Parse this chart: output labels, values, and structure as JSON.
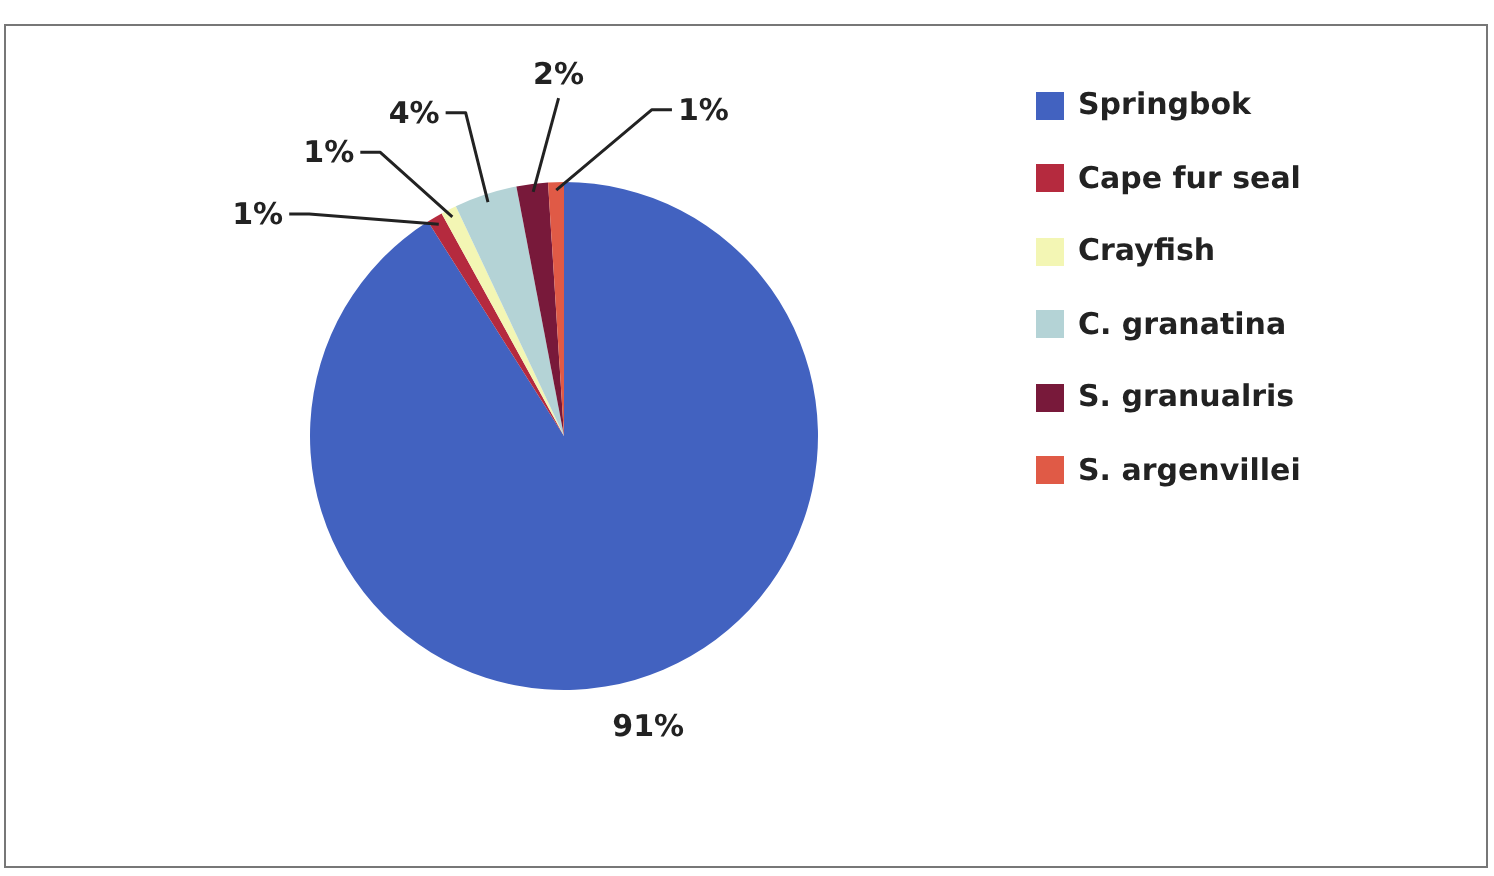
{
  "chart_data": {
    "type": "pie",
    "categories": [
      "Springbok",
      "Cape fur seal",
      "Crayfish",
      "C. granatina",
      "S. granualris",
      "S. argenvillei"
    ],
    "values": [
      91,
      1,
      1,
      4,
      2,
      1
    ],
    "colors": [
      "#4262c0",
      "#b52a3e",
      "#f3f6b4",
      "#b4d3d6",
      "#78193a",
      "#e05a46"
    ],
    "value_labels": [
      "91%",
      "1%",
      "1%",
      "4%",
      "2%",
      "1%"
    ],
    "legend": "top right"
  }
}
